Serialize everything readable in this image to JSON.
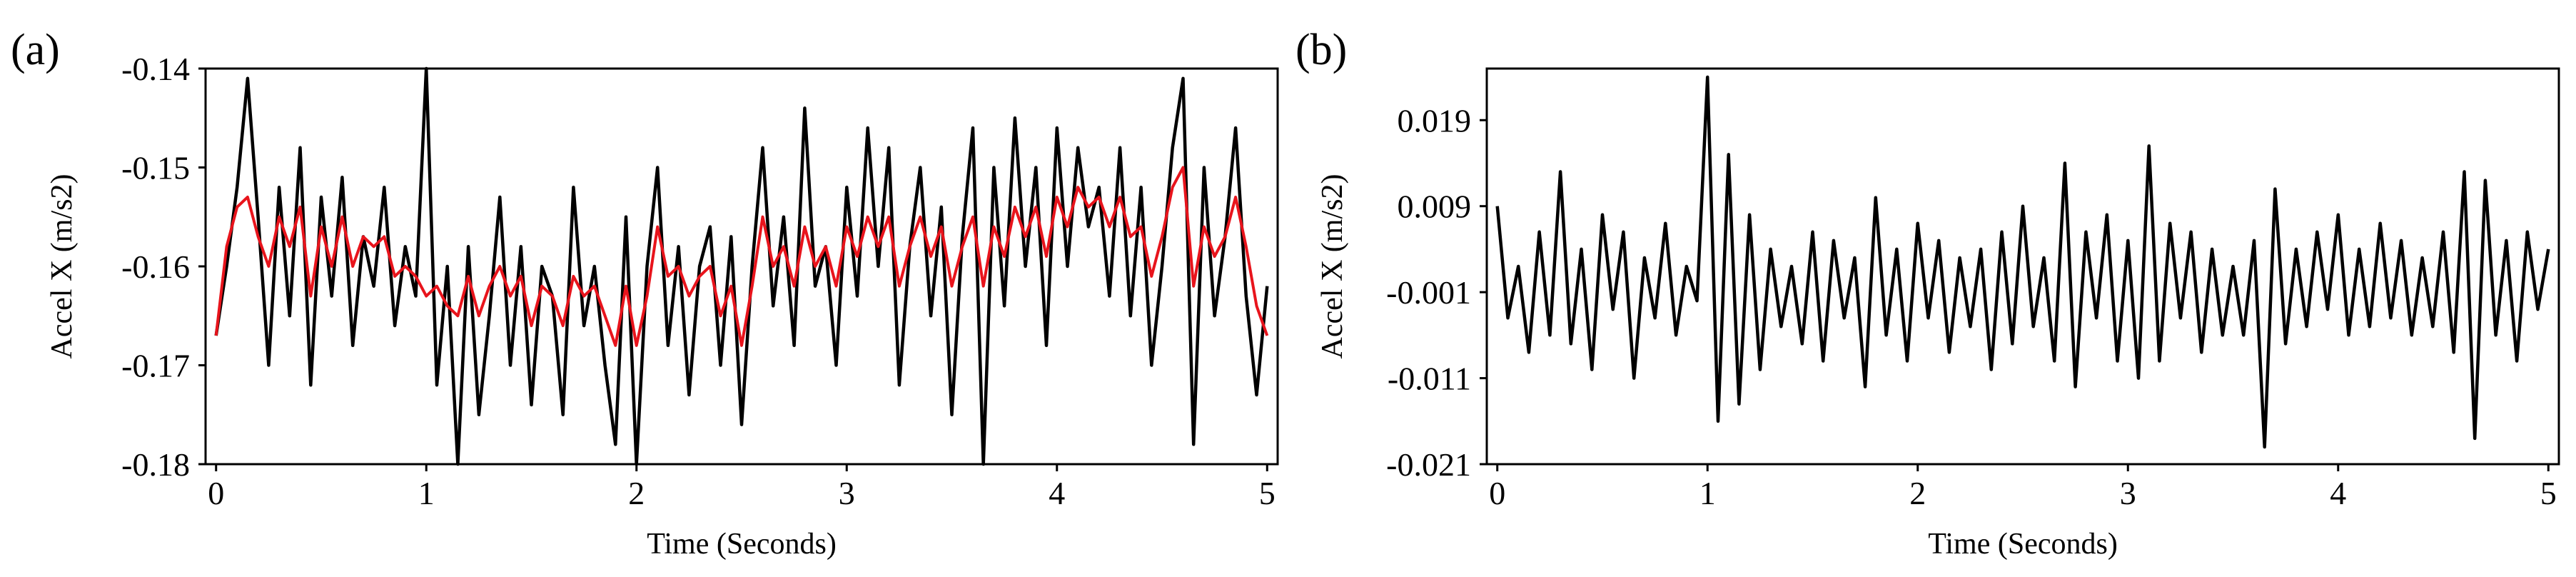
{
  "chart_data": [
    {
      "type": "line",
      "panel_label": "(a)",
      "xlabel": "Time (Seconds)",
      "ylabel": "Accel X (m/s2)",
      "xlim": [
        -0.05,
        5.05
      ],
      "ylim": [
        -0.18,
        -0.14
      ],
      "x_ticks": [
        0,
        1,
        2,
        3,
        4,
        5
      ],
      "y_ticks": [
        -0.14,
        -0.15,
        -0.16,
        -0.17,
        -0.18
      ],
      "y_tick_labels": [
        "-0.14",
        "-0.15",
        "-0.16",
        "-0.17",
        "-0.18"
      ],
      "grid": false,
      "series": [
        {
          "color": "#000000",
          "x": [
            0,
            0.05,
            0.1,
            0.15,
            0.2,
            0.25,
            0.3,
            0.35,
            0.4,
            0.45,
            0.5,
            0.55,
            0.6,
            0.65,
            0.7,
            0.75,
            0.8,
            0.85,
            0.9,
            0.95,
            1,
            1.05,
            1.1,
            1.15,
            1.2,
            1.25,
            1.3,
            1.35,
            1.4,
            1.45,
            1.5,
            1.55,
            1.6,
            1.65,
            1.7,
            1.75,
            1.8,
            1.85,
            1.9,
            1.95,
            2,
            2.05,
            2.1,
            2.15,
            2.2,
            2.25,
            2.3,
            2.35,
            2.4,
            2.45,
            2.5,
            2.55,
            2.6,
            2.65,
            2.7,
            2.75,
            2.8,
            2.85,
            2.9,
            2.95,
            3,
            3.05,
            3.1,
            3.15,
            3.2,
            3.25,
            3.3,
            3.35,
            3.4,
            3.45,
            3.5,
            3.55,
            3.6,
            3.65,
            3.7,
            3.75,
            3.8,
            3.85,
            3.9,
            3.95,
            4,
            4.05,
            4.1,
            4.15,
            4.2,
            4.25,
            4.3,
            4.35,
            4.4,
            4.45,
            4.5,
            4.55,
            4.6,
            4.65,
            4.7,
            4.75,
            4.8,
            4.85,
            4.9,
            4.95,
            5
          ],
          "values": [
            -0.167,
            -0.16,
            -0.152,
            -0.141,
            -0.155,
            -0.17,
            -0.152,
            -0.165,
            -0.148,
            -0.172,
            -0.153,
            -0.163,
            -0.151,
            -0.168,
            -0.157,
            -0.162,
            -0.152,
            -0.166,
            -0.158,
            -0.163,
            -0.14,
            -0.172,
            -0.16,
            -0.18,
            -0.158,
            -0.175,
            -0.165,
            -0.153,
            -0.17,
            -0.158,
            -0.174,
            -0.16,
            -0.163,
            -0.175,
            -0.152,
            -0.166,
            -0.16,
            -0.17,
            -0.178,
            -0.155,
            -0.18,
            -0.16,
            -0.15,
            -0.168,
            -0.158,
            -0.173,
            -0.16,
            -0.156,
            -0.17,
            -0.157,
            -0.176,
            -0.16,
            -0.148,
            -0.164,
            -0.155,
            -0.168,
            -0.144,
            -0.162,
            -0.158,
            -0.17,
            -0.152,
            -0.163,
            -0.146,
            -0.16,
            -0.148,
            -0.172,
            -0.158,
            -0.15,
            -0.165,
            -0.154,
            -0.175,
            -0.157,
            -0.146,
            -0.18,
            -0.15,
            -0.164,
            -0.145,
            -0.16,
            -0.15,
            -0.168,
            -0.146,
            -0.16,
            -0.148,
            -0.156,
            -0.152,
            -0.163,
            -0.148,
            -0.165,
            -0.152,
            -0.17,
            -0.16,
            -0.148,
            -0.141,
            -0.178,
            -0.15,
            -0.165,
            -0.157,
            -0.146,
            -0.163,
            -0.173,
            -0.162
          ]
        },
        {
          "color": "#e8141c",
          "x": [
            0,
            0.05,
            0.1,
            0.15,
            0.2,
            0.25,
            0.3,
            0.35,
            0.4,
            0.45,
            0.5,
            0.55,
            0.6,
            0.65,
            0.7,
            0.75,
            0.8,
            0.85,
            0.9,
            0.95,
            1,
            1.05,
            1.1,
            1.15,
            1.2,
            1.25,
            1.3,
            1.35,
            1.4,
            1.45,
            1.5,
            1.55,
            1.6,
            1.65,
            1.7,
            1.75,
            1.8,
            1.85,
            1.9,
            1.95,
            2,
            2.05,
            2.1,
            2.15,
            2.2,
            2.25,
            2.3,
            2.35,
            2.4,
            2.45,
            2.5,
            2.55,
            2.6,
            2.65,
            2.7,
            2.75,
            2.8,
            2.85,
            2.9,
            2.95,
            3,
            3.05,
            3.1,
            3.15,
            3.2,
            3.25,
            3.3,
            3.35,
            3.4,
            3.45,
            3.5,
            3.55,
            3.6,
            3.65,
            3.7,
            3.75,
            3.8,
            3.85,
            3.9,
            3.95,
            4,
            4.05,
            4.1,
            4.15,
            4.2,
            4.25,
            4.3,
            4.35,
            4.4,
            4.45,
            4.5,
            4.55,
            4.6,
            4.65,
            4.7,
            4.75,
            4.8,
            4.85,
            4.9,
            4.95,
            5
          ],
          "values": [
            -0.167,
            -0.158,
            -0.154,
            -0.153,
            -0.157,
            -0.16,
            -0.155,
            -0.158,
            -0.154,
            -0.163,
            -0.156,
            -0.16,
            -0.155,
            -0.16,
            -0.157,
            -0.158,
            -0.157,
            -0.161,
            -0.16,
            -0.161,
            -0.163,
            -0.162,
            -0.164,
            -0.165,
            -0.161,
            -0.165,
            -0.162,
            -0.16,
            -0.163,
            -0.161,
            -0.166,
            -0.162,
            -0.163,
            -0.166,
            -0.161,
            -0.163,
            -0.162,
            -0.165,
            -0.168,
            -0.162,
            -0.168,
            -0.163,
            -0.156,
            -0.161,
            -0.16,
            -0.163,
            -0.161,
            -0.16,
            -0.165,
            -0.162,
            -0.168,
            -0.162,
            -0.155,
            -0.16,
            -0.158,
            -0.162,
            -0.156,
            -0.16,
            -0.158,
            -0.162,
            -0.156,
            -0.159,
            -0.155,
            -0.158,
            -0.155,
            -0.162,
            -0.158,
            -0.155,
            -0.159,
            -0.156,
            -0.162,
            -0.158,
            -0.155,
            -0.162,
            -0.156,
            -0.159,
            -0.154,
            -0.157,
            -0.154,
            -0.159,
            -0.153,
            -0.156,
            -0.152,
            -0.154,
            -0.153,
            -0.156,
            -0.153,
            -0.157,
            -0.156,
            -0.161,
            -0.157,
            -0.152,
            -0.15,
            -0.162,
            -0.156,
            -0.159,
            -0.157,
            -0.153,
            -0.158,
            -0.164,
            -0.167
          ]
        }
      ]
    },
    {
      "type": "line",
      "panel_label": "(b)",
      "xlabel": "Time (Seconds)",
      "ylabel": "Accel X (m/s2)",
      "xlim": [
        -0.05,
        5.05
      ],
      "ylim": [
        -0.021,
        0.025
      ],
      "x_ticks": [
        0,
        1,
        2,
        3,
        4,
        5
      ],
      "y_ticks": [
        0.019,
        0.009,
        -0.001,
        -0.011,
        -0.021
      ],
      "y_tick_labels": [
        "0.019",
        "0.009",
        "-0.001",
        "-0.011",
        "-0.021"
      ],
      "grid": false,
      "series": [
        {
          "color": "#000000",
          "x": [
            0,
            0.05,
            0.1,
            0.15,
            0.2,
            0.25,
            0.3,
            0.35,
            0.4,
            0.45,
            0.5,
            0.55,
            0.6,
            0.65,
            0.7,
            0.75,
            0.8,
            0.85,
            0.9,
            0.95,
            1,
            1.05,
            1.1,
            1.15,
            1.2,
            1.25,
            1.3,
            1.35,
            1.4,
            1.45,
            1.5,
            1.55,
            1.6,
            1.65,
            1.7,
            1.75,
            1.8,
            1.85,
            1.9,
            1.95,
            2,
            2.05,
            2.1,
            2.15,
            2.2,
            2.25,
            2.3,
            2.35,
            2.4,
            2.45,
            2.5,
            2.55,
            2.6,
            2.65,
            2.7,
            2.75,
            2.8,
            2.85,
            2.9,
            2.95,
            3,
            3.05,
            3.1,
            3.15,
            3.2,
            3.25,
            3.3,
            3.35,
            3.4,
            3.45,
            3.5,
            3.55,
            3.6,
            3.65,
            3.7,
            3.75,
            3.8,
            3.85,
            3.9,
            3.95,
            4,
            4.05,
            4.1,
            4.15,
            4.2,
            4.25,
            4.3,
            4.35,
            4.4,
            4.45,
            4.5,
            4.55,
            4.6,
            4.65,
            4.7,
            4.75,
            4.8,
            4.85,
            4.9,
            4.95,
            5
          ],
          "values": [
            0.009,
            -0.004,
            0.002,
            -0.008,
            0.006,
            -0.006,
            0.013,
            -0.007,
            0.004,
            -0.01,
            0.008,
            -0.003,
            0.006,
            -0.011,
            0.003,
            -0.004,
            0.007,
            -0.006,
            0.002,
            -0.002,
            0.024,
            -0.016,
            0.015,
            -0.014,
            0.008,
            -0.01,
            0.004,
            -0.005,
            0.002,
            -0.007,
            0.006,
            -0.009,
            0.005,
            -0.004,
            0.003,
            -0.012,
            0.01,
            -0.006,
            0.004,
            -0.009,
            0.007,
            -0.004,
            0.005,
            -0.008,
            0.003,
            -0.005,
            0.004,
            -0.01,
            0.006,
            -0.007,
            0.009,
            -0.005,
            0.003,
            -0.009,
            0.014,
            -0.012,
            0.006,
            -0.004,
            0.008,
            -0.009,
            0.005,
            -0.011,
            0.016,
            -0.009,
            0.007,
            -0.004,
            0.006,
            -0.008,
            0.004,
            -0.006,
            0.002,
            -0.006,
            0.005,
            -0.019,
            0.011,
            -0.007,
            0.004,
            -0.005,
            0.006,
            -0.003,
            0.008,
            -0.006,
            0.004,
            -0.005,
            0.007,
            -0.004,
            0.005,
            -0.006,
            0.003,
            -0.005,
            0.006,
            -0.008,
            0.013,
            -0.018,
            0.012,
            -0.006,
            0.005,
            -0.009,
            0.006,
            -0.003,
            0.004
          ]
        }
      ]
    }
  ]
}
